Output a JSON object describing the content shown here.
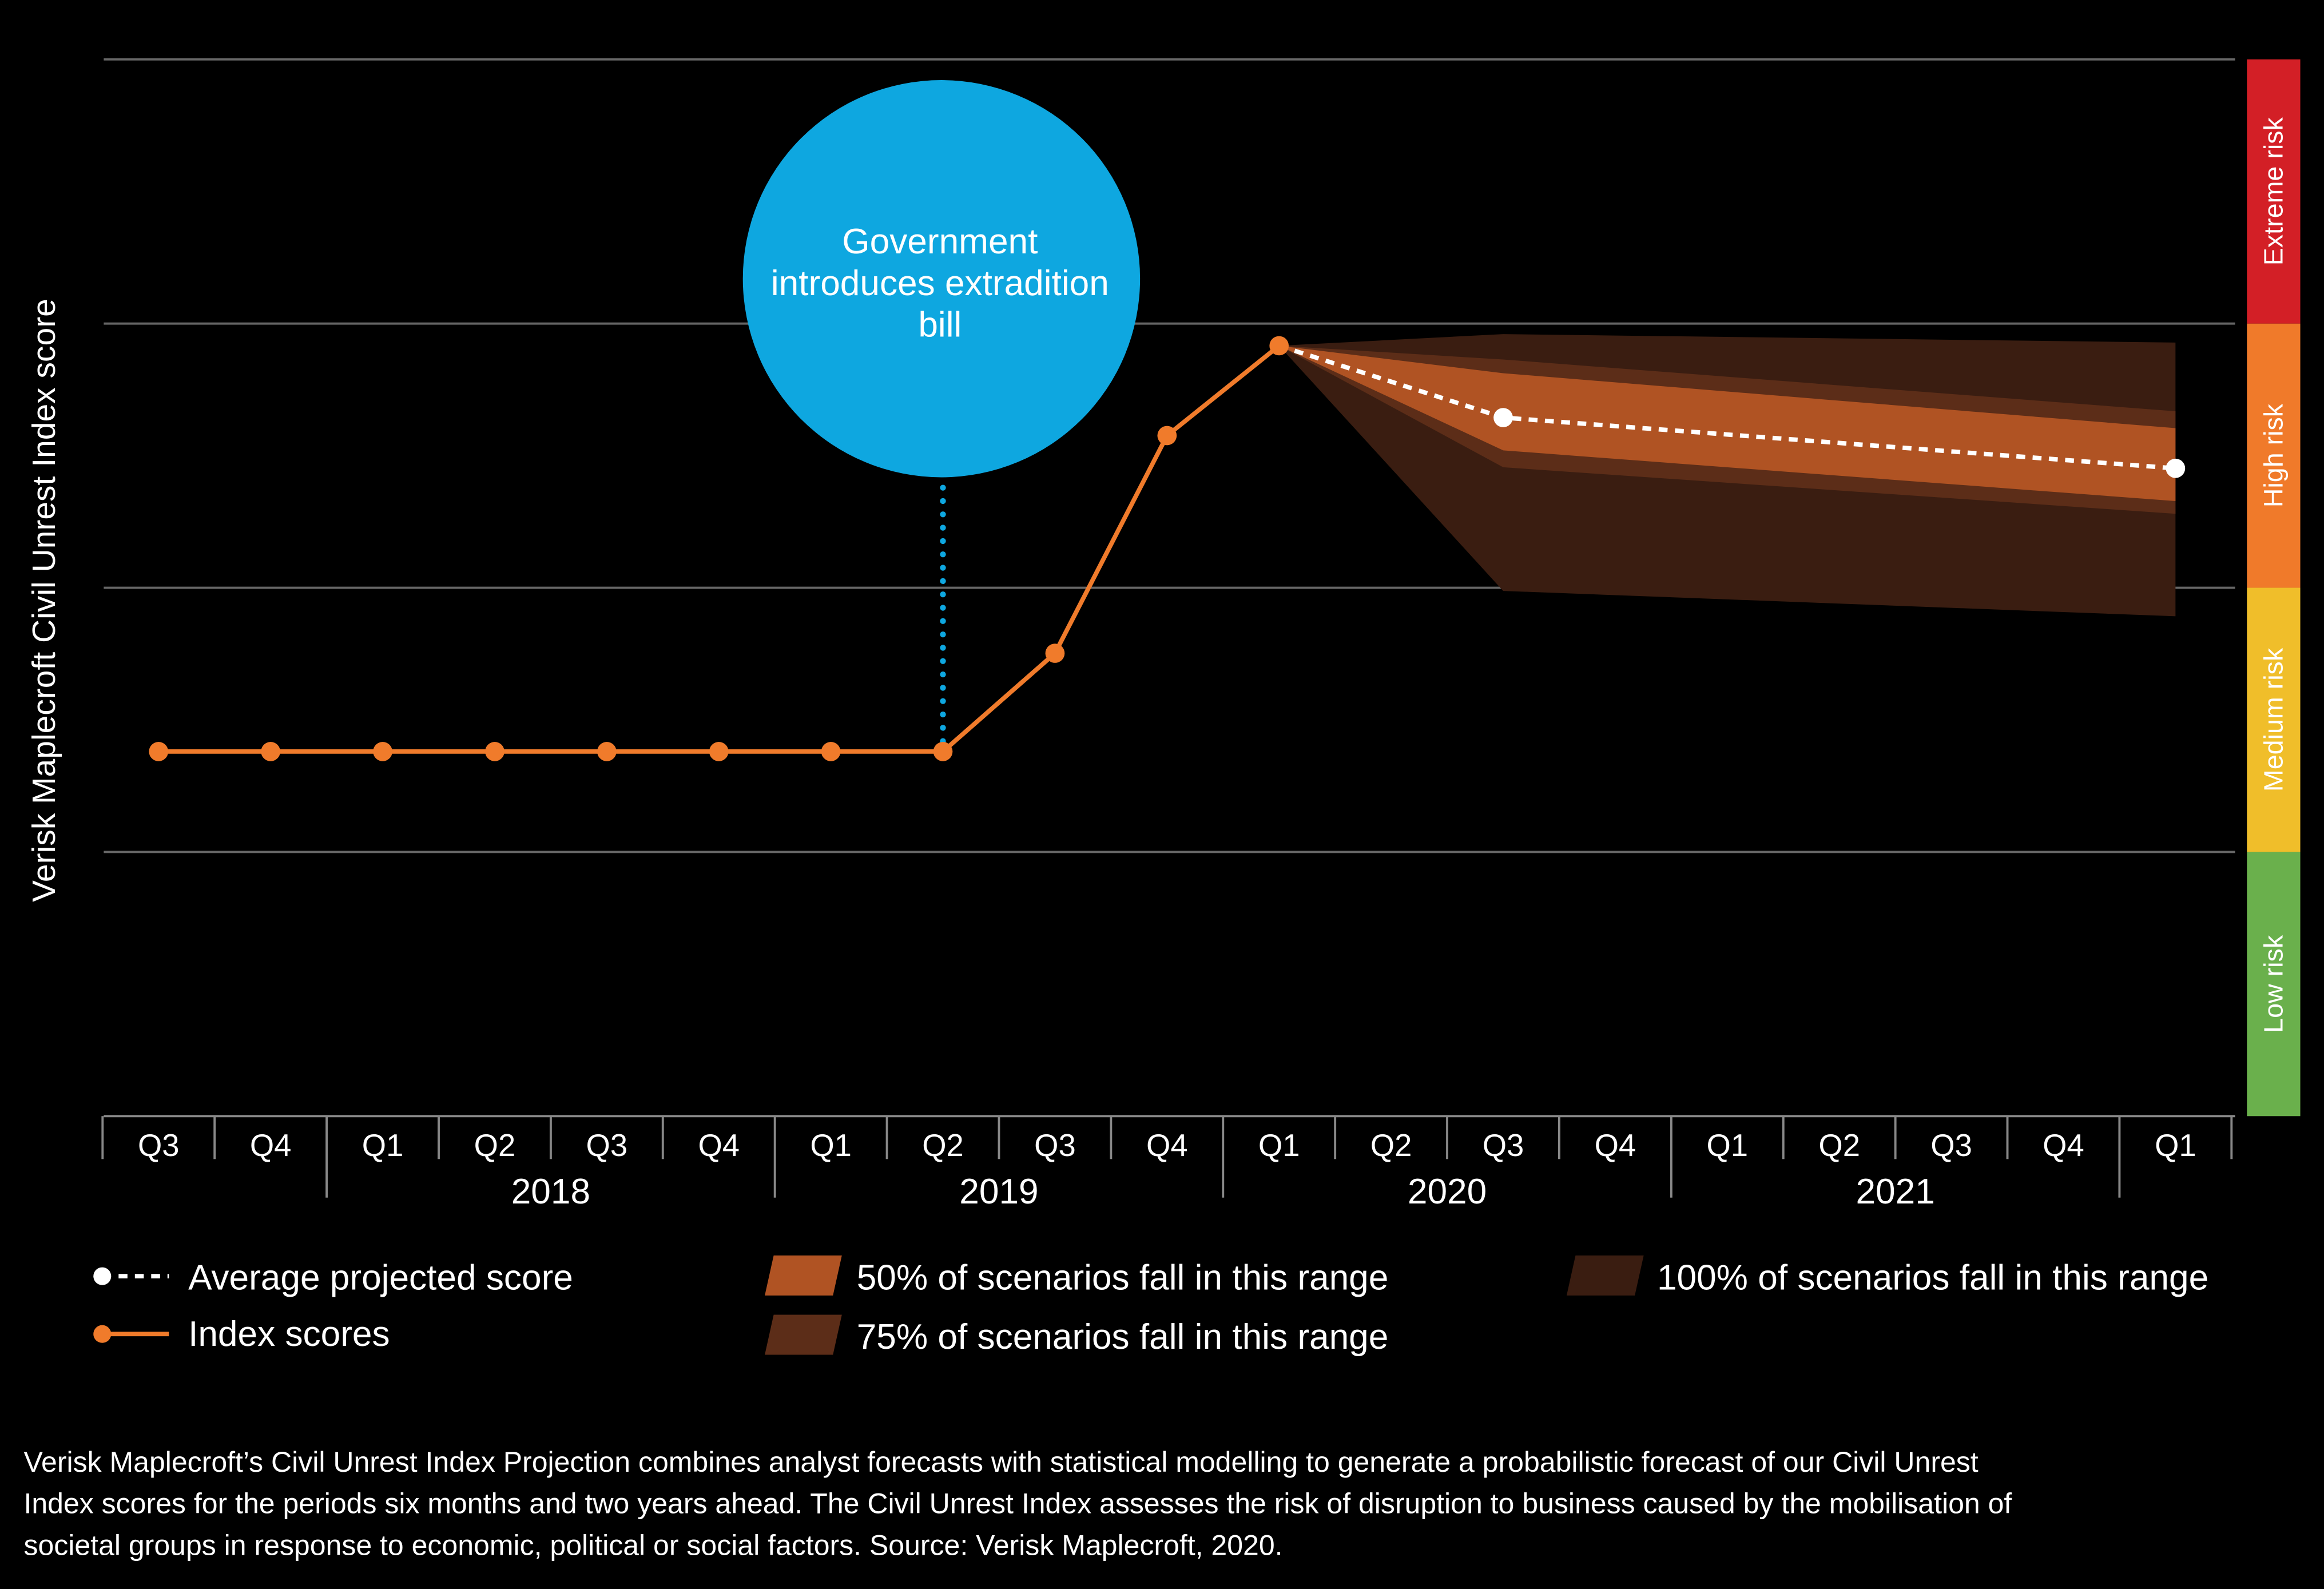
{
  "chart_data": {
    "type": "line",
    "ylabel": "Verisk Maplecroft Civil Unrest Index score",
    "ylim": [
      0,
      10
    ],
    "grid": true,
    "quarters": [
      "Q3",
      "Q4",
      "Q1",
      "Q2",
      "Q3",
      "Q4",
      "Q1",
      "Q2",
      "Q3",
      "Q4",
      "Q1",
      "Q2",
      "Q3",
      "Q4",
      "Q1",
      "Q2",
      "Q3",
      "Q4",
      "Q1"
    ],
    "years": [
      {
        "label": "2018",
        "first_index": 2,
        "last_index": 5
      },
      {
        "label": "2019",
        "first_index": 6,
        "last_index": 9
      },
      {
        "label": "2020",
        "first_index": 10,
        "last_index": 13
      },
      {
        "label": "2021",
        "first_index": 14,
        "last_index": 17
      }
    ],
    "index_scores": {
      "name": "Index scores",
      "x_index": [
        0,
        1,
        2,
        3,
        4,
        5,
        6,
        7,
        8,
        9,
        10
      ],
      "values": [
        3.45,
        3.45,
        3.45,
        3.45,
        3.45,
        3.45,
        3.45,
        3.45,
        4.38,
        6.44,
        7.29
      ],
      "color": "#f07b2b"
    },
    "average_projected": {
      "name": "Average projected score",
      "x_index": [
        10,
        12,
        18
      ],
      "values": [
        7.29,
        6.61,
        6.13
      ],
      "color": "#ffffff"
    },
    "ranges": [
      {
        "name": "100% of scenarios fall in this range",
        "color": "#3a1d11",
        "x_index": [
          10,
          12,
          18
        ],
        "upper": [
          7.29,
          7.4,
          7.32
        ],
        "lower": [
          7.29,
          4.97,
          4.73
        ]
      },
      {
        "name": "75% of scenarios fall in this range",
        "color": "#5c2d18",
        "x_index": [
          10,
          12,
          18
        ],
        "upper": [
          7.29,
          7.16,
          6.67
        ],
        "lower": [
          7.29,
          6.14,
          5.7
        ]
      },
      {
        "name": "50% of scenarios fall in this range",
        "color": "#b05323",
        "x_index": [
          10,
          12,
          18
        ],
        "upper": [
          7.29,
          7.03,
          6.51
        ],
        "lower": [
          7.29,
          6.3,
          5.82
        ]
      }
    ],
    "risk_bands": [
      {
        "label": "Low risk",
        "from": 0,
        "to": 2.5,
        "color": "#6ab04c"
      },
      {
        "label": "Medium risk",
        "from": 2.5,
        "to": 5,
        "color": "#f0be2a"
      },
      {
        "label": "High risk",
        "from": 5,
        "to": 7.5,
        "color": "#f07a2a"
      },
      {
        "label": "Extreme risk",
        "from": 7.5,
        "to": 10,
        "color": "#d31f26"
      }
    ],
    "annotation": {
      "lines": [
        "Government",
        "introduces extradition",
        "bill"
      ],
      "x_index": 7,
      "color": "#0ea7e0"
    }
  },
  "legend": {
    "average": "Average projected score",
    "index": "Index scores",
    "r50": "50% of scenarios fall in this range",
    "r75": "75% of scenarios fall in this range",
    "r100": "100% of scenarios fall in this range"
  },
  "footnote": [
    "Verisk Maplecroft’s Civil Unrest Index Projection combines analyst forecasts with statistical modelling to generate a probabilistic forecast of our Civil Unrest",
    "Index scores for the periods six months and two years ahead. The Civil Unrest Index assesses the risk of disruption to business caused by the mobilisation of",
    "societal groups in response to economic, political or social factors. Source: Verisk Maplecroft, 2020."
  ]
}
